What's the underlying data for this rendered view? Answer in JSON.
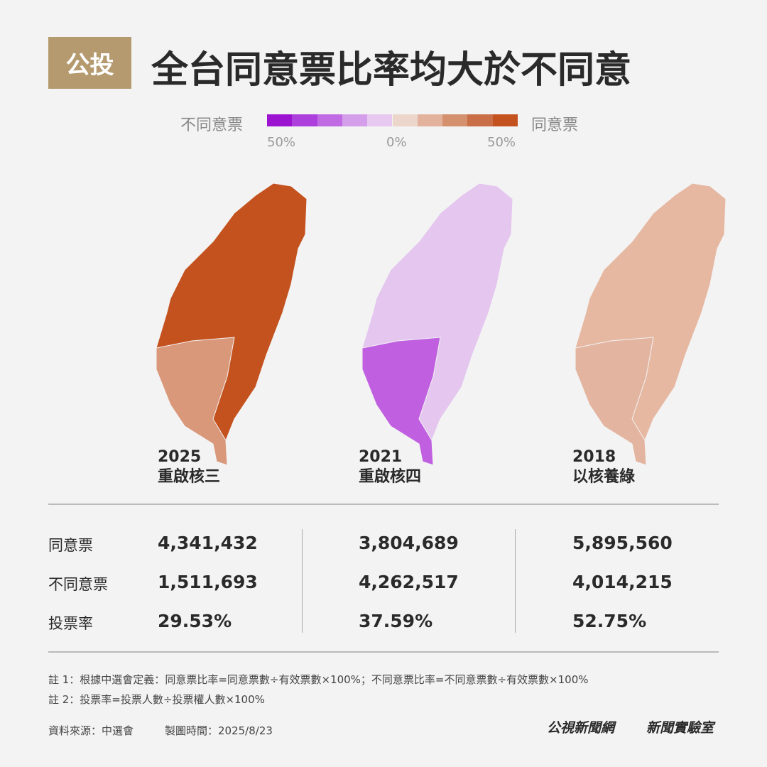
{
  "header": {
    "tag": "公投",
    "title": "全台同意票比率均大於不同意"
  },
  "legend": {
    "left": "不同意票",
    "right": "同意票",
    "colors": [
      "#9b13d0",
      "#ad3fdc",
      "#c06ae4",
      "#d49eeb",
      "#e6c8f1",
      "#ecd6cc",
      "#e2b29c",
      "#d5906d",
      "#c96e47",
      "#c4521f"
    ],
    "labels": [
      "50%",
      "0%",
      "50%"
    ]
  },
  "maps": [
    {
      "year": "2025",
      "name": "重啟核三",
      "colors": [
        "#c4521f",
        "#d9987a"
      ]
    },
    {
      "year": "2021",
      "name": "重啟核四",
      "colors": [
        "#e4c6ef",
        "#c060e0"
      ]
    },
    {
      "year": "2018",
      "name": "以核養綠",
      "colors": [
        "#e6b8a2",
        "#e3b5a0"
      ]
    }
  ],
  "table": {
    "row_labels": [
      "同意票",
      "不同意票",
      "投票率"
    ],
    "columns": [
      [
        "4,341,432",
        "1,511,693",
        "29.53%"
      ],
      [
        "3,804,689",
        "4,262,517",
        "37.59%"
      ],
      [
        "5,895,560",
        "4,014,215",
        "52.75%"
      ]
    ]
  },
  "notes": [
    "註 1：根據中選會定義：同意票比率=同意票數÷有效票數×100%；不同意票比率=不同意票數÷有效票數×100%",
    "註 2：投票率=投票人數÷投票權人數×100%"
  ],
  "source": "資料來源：中選會",
  "made": "製圖時間：2025/8/23",
  "logos": [
    "公視新聞網",
    "新聞實驗室"
  ]
}
